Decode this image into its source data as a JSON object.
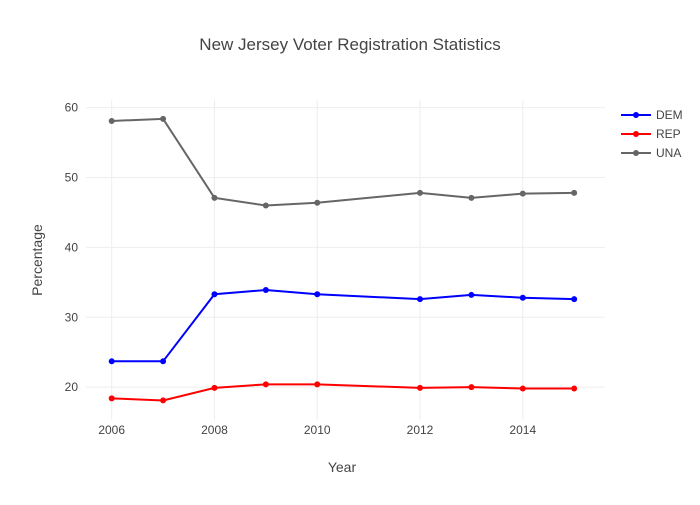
{
  "chart_data": {
    "type": "line",
    "title": "New Jersey Voter Registration Statistics",
    "xlabel": "Year",
    "ylabel": "Percentage",
    "x": [
      2006,
      2007,
      2008,
      2009,
      2010,
      2012,
      2013,
      2014,
      2015
    ],
    "xlim": [
      2005.5,
      2015.6
    ],
    "ylim": [
      15.3,
      61.1
    ],
    "xticks": [
      2006,
      2008,
      2010,
      2012,
      2014
    ],
    "yticks": [
      20,
      30,
      40,
      50,
      60
    ],
    "grid": true,
    "legend_position": "top-right",
    "series": [
      {
        "name": "DEM",
        "color": "#0000ff",
        "values": [
          23.7,
          23.7,
          33.3,
          33.9,
          33.3,
          32.6,
          33.2,
          32.8,
          32.6
        ]
      },
      {
        "name": "REP",
        "color": "#ff0000",
        "values": [
          18.4,
          18.1,
          19.9,
          20.4,
          20.4,
          19.9,
          20.0,
          19.8,
          19.8
        ]
      },
      {
        "name": "UNA",
        "color": "#666666",
        "values": [
          58.1,
          58.4,
          47.1,
          46.0,
          46.4,
          47.8,
          47.1,
          47.7,
          47.8
        ]
      }
    ]
  }
}
